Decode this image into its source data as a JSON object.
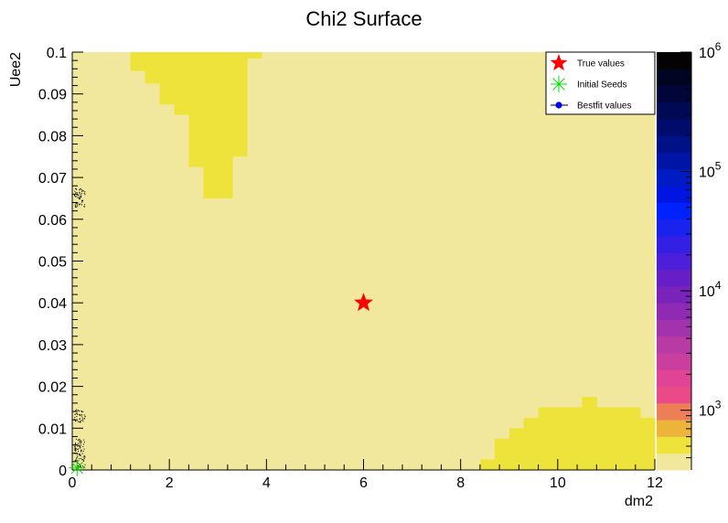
{
  "chart_data": {
    "type": "heatmap",
    "title": "Chi2 Surface",
    "xlabel": "dm2",
    "ylabel": "Uee2",
    "xlim": [
      0,
      12
    ],
    "ylim": [
      0,
      0.1
    ],
    "x_ticks": [
      {
        "value": 0,
        "label": "0"
      },
      {
        "value": 2,
        "label": "2"
      },
      {
        "value": 4,
        "label": "4"
      },
      {
        "value": 6,
        "label": "6"
      },
      {
        "value": 8,
        "label": "8"
      },
      {
        "value": 10,
        "label": "10"
      },
      {
        "value": 12,
        "label": "12"
      }
    ],
    "y_ticks": [
      {
        "value": 0,
        "label": "0"
      },
      {
        "value": 0.01,
        "label": "0.01"
      },
      {
        "value": 0.02,
        "label": "0.02"
      },
      {
        "value": 0.03,
        "label": "0.03"
      },
      {
        "value": 0.04,
        "label": "0.04"
      },
      {
        "value": 0.05,
        "label": "0.05"
      },
      {
        "value": 0.06,
        "label": "0.06"
      },
      {
        "value": 0.07,
        "label": "0.07"
      },
      {
        "value": 0.08,
        "label": "0.08"
      },
      {
        "value": 0.09,
        "label": "0.09"
      },
      {
        "value": 0.1,
        "label": "0.1"
      }
    ],
    "colorbar": {
      "scale": "log",
      "range": [
        316,
        1000000
      ],
      "tick_labels": [
        {
          "value": 1000,
          "base": "10",
          "exp": "3"
        },
        {
          "value": 10000,
          "base": "10",
          "exp": "4"
        },
        {
          "value": 100000,
          "base": "10",
          "exp": "5"
        },
        {
          "value": 1000000,
          "base": "10",
          "exp": "6"
        }
      ],
      "colors": [
        "#f1e89e",
        "#eee33a",
        "#edb43a",
        "#ec7e58",
        "#ea4a88",
        "#e14496",
        "#ca3e9d",
        "#b83aa5",
        "#a332ad",
        "#8f2ab4",
        "#7923ba",
        "#661fc6",
        "#4d1fdb",
        "#3320e4",
        "#1a22ee",
        "#0022ff",
        "#0016e0",
        "#001ac4",
        "#0014a5",
        "#001087",
        "#000c6c",
        "#000954",
        "#01053a",
        "#020522",
        "#030303"
      ]
    },
    "background_value_color": "#f1e89e",
    "highlight_color": "#eee33a",
    "regions": [
      {
        "name": "upper-left",
        "cells": [
          [
            1.2,
            1.5,
            0.0955,
            0.1
          ],
          [
            1.5,
            1.8,
            0.0925,
            0.1
          ],
          [
            1.8,
            2.1,
            0.0875,
            0.1
          ],
          [
            2.1,
            2.4,
            0.085,
            0.1
          ],
          [
            2.4,
            2.7,
            0.0725,
            0.1
          ],
          [
            2.7,
            3.3,
            0.065,
            0.1
          ],
          [
            3.3,
            3.6,
            0.075,
            0.1
          ],
          [
            3.6,
            3.9,
            0.0985,
            0.1
          ]
        ]
      },
      {
        "name": "lower-right",
        "cells": [
          [
            8.4,
            8.7,
            0,
            0.0025
          ],
          [
            8.7,
            9.0,
            0,
            0.0075
          ],
          [
            9.0,
            9.3,
            0,
            0.01
          ],
          [
            9.3,
            9.6,
            0,
            0.0125
          ],
          [
            9.6,
            10.5,
            0,
            0.015
          ],
          [
            10.5,
            10.8,
            0,
            0.0175
          ],
          [
            10.8,
            11.7,
            0,
            0.015
          ],
          [
            11.7,
            12.0,
            0,
            0.0125
          ]
        ]
      }
    ],
    "markers": [
      {
        "name": "True values",
        "x": 6,
        "y": 0.04,
        "symbol": "star",
        "color": "#ff0000"
      },
      {
        "name": "Initial Seeds",
        "x": 0.1,
        "y": 0.0005,
        "symbol": "asterisk",
        "color": "#00dd00"
      },
      {
        "name": "Bestfit values",
        "symbol": "circle",
        "color": "#0000ff"
      }
    ],
    "scatter_clusters": [
      {
        "x": 0.15,
        "y_range": [
          0.063,
          0.0675
        ]
      },
      {
        "x": 0.15,
        "y_range": [
          0.0115,
          0.0145
        ]
      },
      {
        "x": 0.15,
        "y_range": [
          0.0005,
          0.0075
        ]
      }
    ],
    "legend": {
      "placement": "top-right",
      "entries": [
        "True values",
        "Initial Seeds",
        "Bestfit values"
      ]
    }
  }
}
